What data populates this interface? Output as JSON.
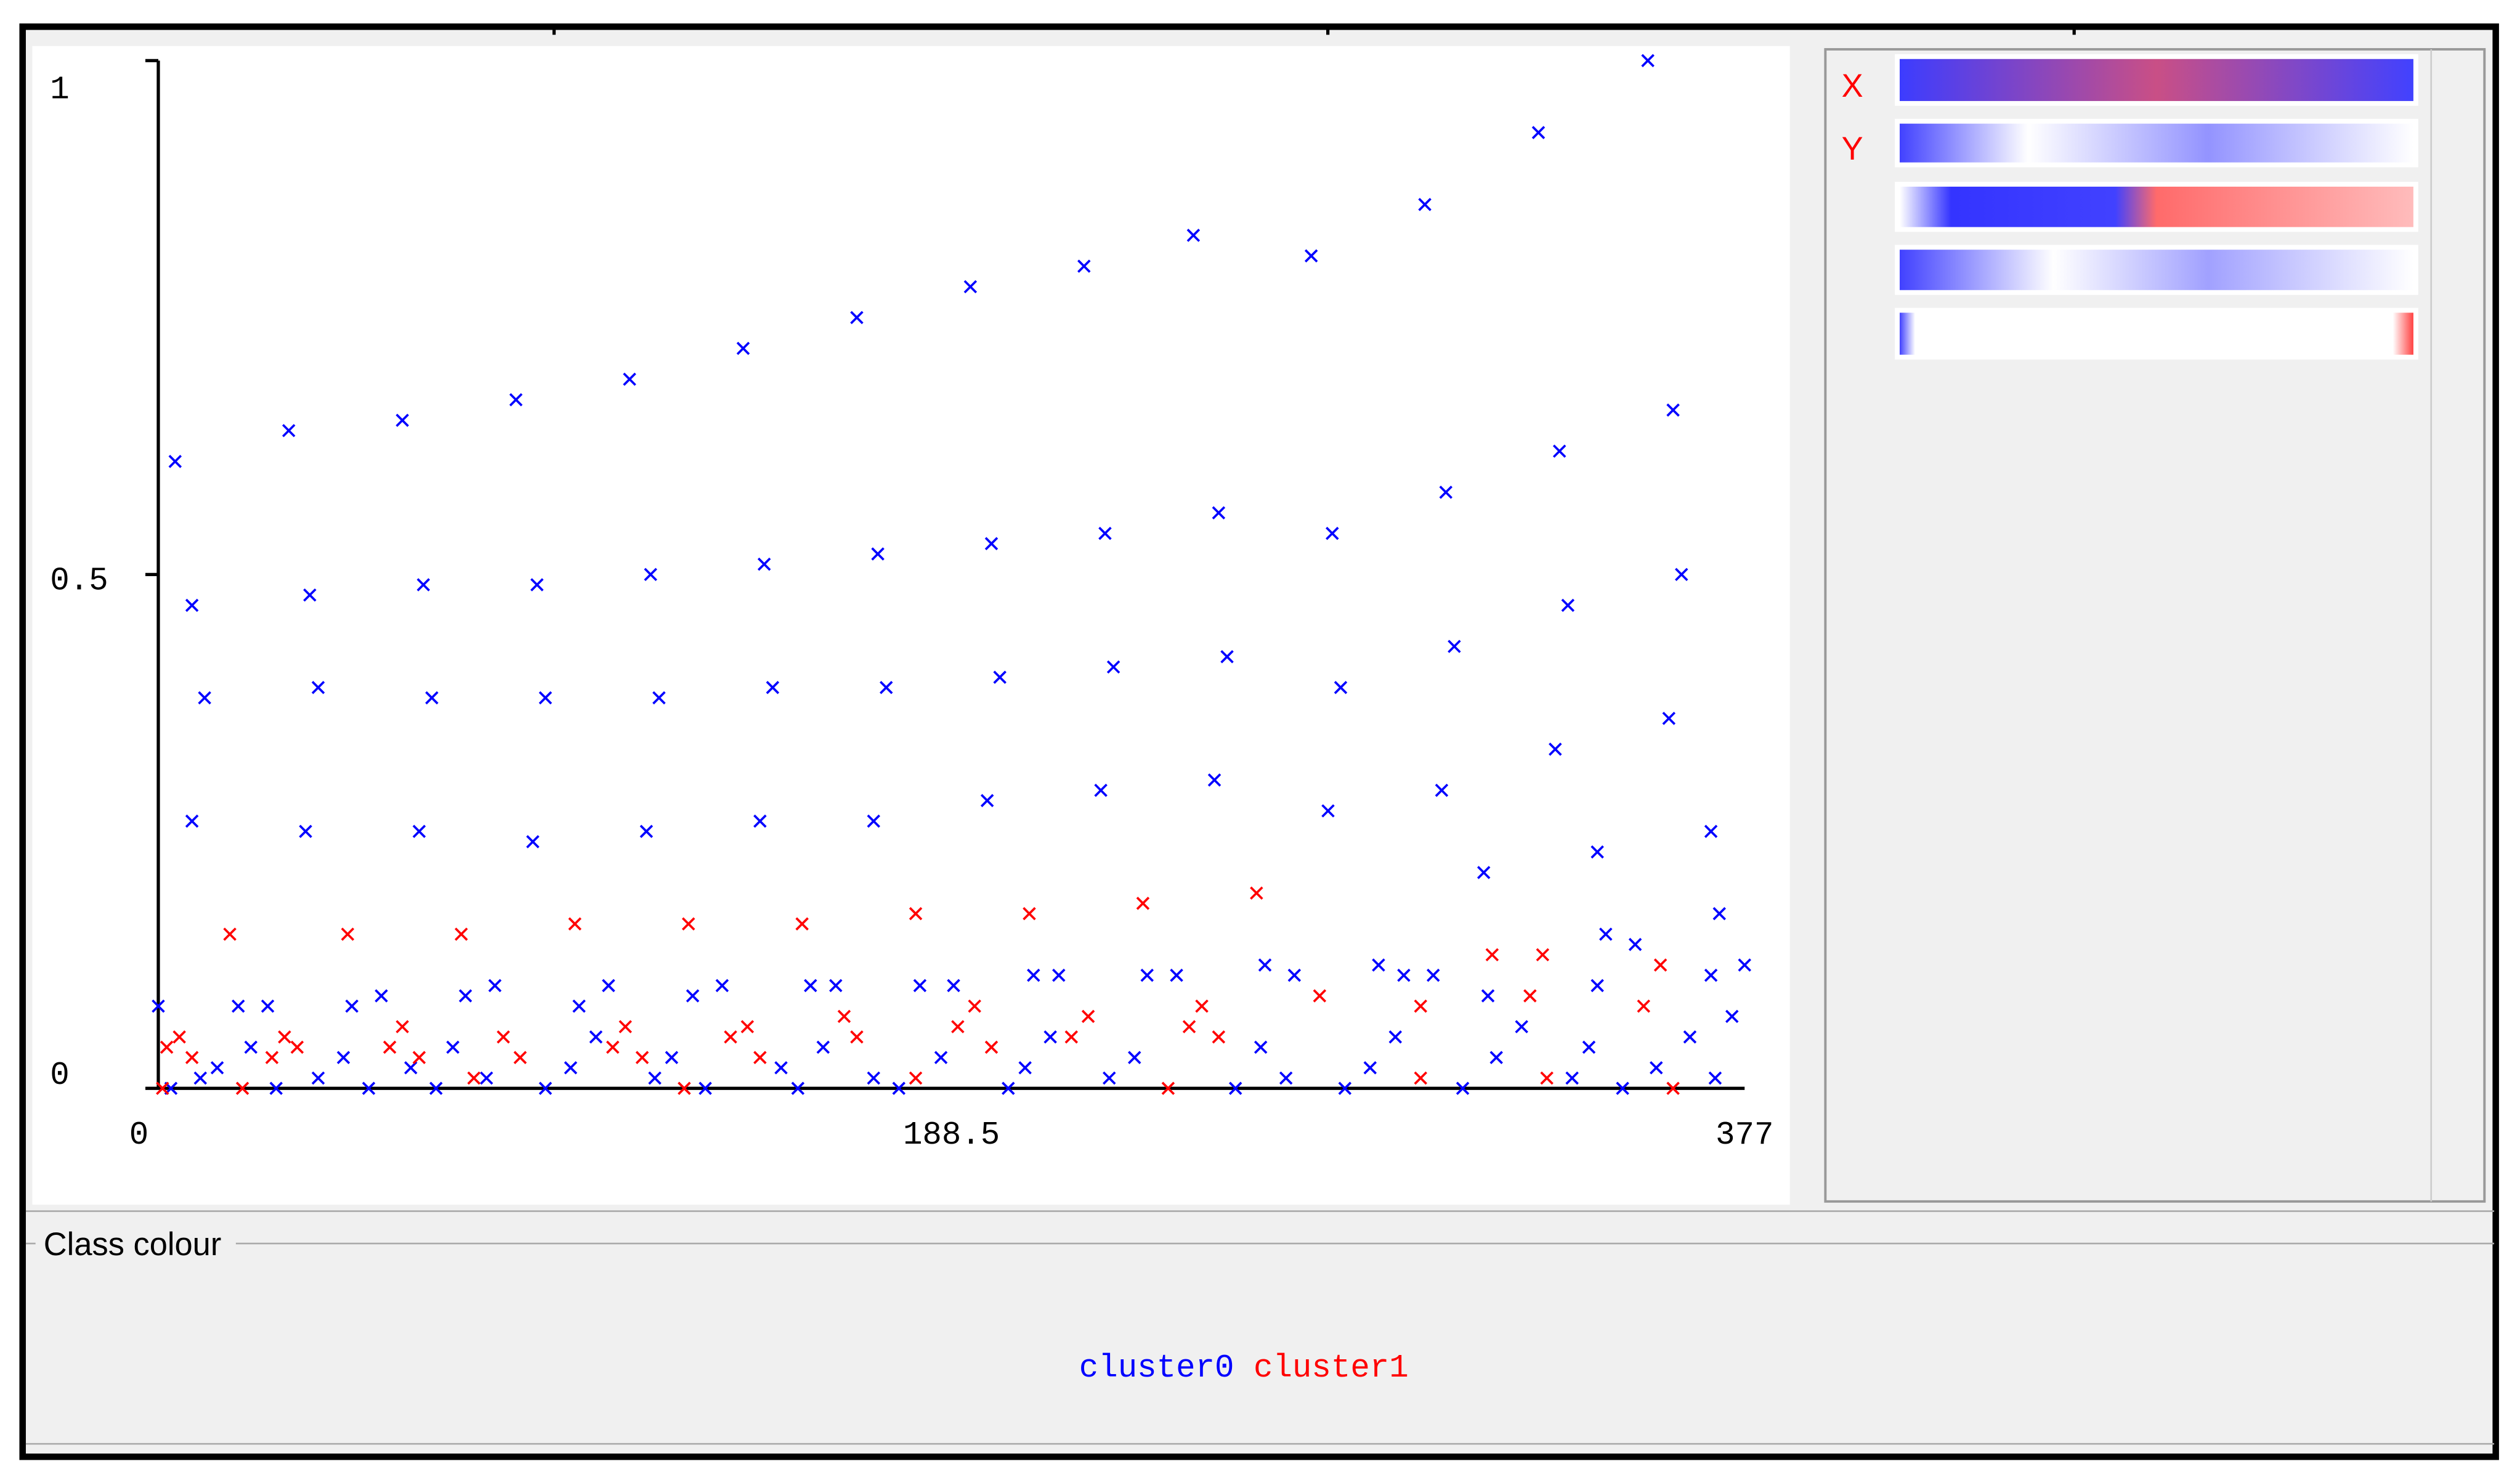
{
  "chart_data": {
    "type": "scatter",
    "xlim": [
      0,
      377
    ],
    "xticks": [
      0,
      188.5,
      377
    ],
    "ylim": [
      0,
      1
    ],
    "yticks": [
      0,
      0.5,
      1
    ],
    "legend_title": "Class colour",
    "series": [
      {
        "name": "cluster0",
        "color": "#0000ff",
        "x": [
          4,
          31,
          58,
          85,
          112,
          139,
          166,
          193,
          220,
          246,
          274,
          301,
          328,
          354,
          8,
          36,
          63,
          90,
          117,
          144,
          171,
          198,
          225,
          252,
          279,
          306,
          333,
          360,
          11,
          38,
          65,
          92,
          119,
          146,
          173,
          200,
          227,
          254,
          281,
          308,
          335,
          362,
          8,
          35,
          62,
          89,
          116,
          143,
          170,
          197,
          224,
          251,
          278,
          305,
          315,
          332,
          342,
          359,
          369,
          371,
          344,
          351,
          369,
          377,
          342,
          316,
          290,
          296,
          303,
          263,
          270,
          235,
          242,
          214,
          208,
          189,
          181,
          161,
          155,
          134,
          127,
          107,
          100,
          80,
          73,
          53,
          46,
          26,
          19,
          0,
          3,
          10,
          14,
          22,
          28,
          38,
          44,
          50,
          60,
          66,
          70,
          78,
          92,
          98,
          104,
          118,
          122,
          130,
          148,
          152,
          158,
          170,
          176,
          186,
          202,
          206,
          212,
          226,
          232,
          256,
          262,
          268,
          282,
          288,
          294,
          310,
          318,
          324,
          336,
          340,
          348,
          356,
          364,
          370,
          374
        ],
        "values": [
          0.61,
          0.64,
          0.65,
          0.67,
          0.69,
          0.72,
          0.75,
          0.78,
          0.8,
          0.83,
          0.81,
          0.86,
          0.93,
          1.0,
          0.47,
          0.48,
          0.49,
          0.49,
          0.5,
          0.51,
          0.52,
          0.53,
          0.54,
          0.56,
          0.54,
          0.58,
          0.62,
          0.66,
          0.38,
          0.39,
          0.38,
          0.38,
          0.38,
          0.39,
          0.39,
          0.4,
          0.41,
          0.42,
          0.39,
          0.43,
          0.47,
          0.5,
          0.26,
          0.25,
          0.25,
          0.24,
          0.25,
          0.26,
          0.26,
          0.28,
          0.29,
          0.3,
          0.27,
          0.29,
          0.21,
          0.33,
          0.23,
          0.36,
          0.25,
          0.17,
          0.15,
          0.14,
          0.11,
          0.12,
          0.1,
          0.09,
          0.12,
          0.11,
          0.11,
          0.12,
          0.11,
          0.11,
          0.11,
          0.11,
          0.11,
          0.1,
          0.1,
          0.1,
          0.1,
          0.1,
          0.09,
          0.1,
          0.08,
          0.1,
          0.09,
          0.09,
          0.08,
          0.08,
          0.08,
          0.08,
          0.0,
          0.01,
          0.02,
          0.04,
          0.0,
          0.01,
          0.03,
          0.0,
          0.02,
          0.0,
          0.04,
          0.01,
          0.0,
          0.02,
          0.05,
          0.01,
          0.03,
          0.0,
          0.02,
          0.0,
          0.04,
          0.01,
          0.0,
          0.03,
          0.0,
          0.02,
          0.05,
          0.01,
          0.03,
          0.0,
          0.04,
          0.01,
          0.0,
          0.02,
          0.05,
          0.0,
          0.03,
          0.06,
          0.01,
          0.04,
          0.0,
          0.02,
          0.05,
          0.01,
          0.07
        ]
      },
      {
        "name": "cluster1",
        "color": "#ff0000",
        "x": [
          17,
          45,
          72,
          99,
          126,
          153,
          180,
          207,
          234,
          261,
          317,
          329,
          357,
          326,
          353,
          276,
          300,
          2,
          5,
          8,
          27,
          30,
          33,
          55,
          58,
          62,
          82,
          86,
          108,
          111,
          115,
          136,
          140,
          143,
          163,
          166,
          190,
          194,
          198,
          217,
          221,
          245,
          248,
          252,
          330,
          1,
          20,
          75,
          125,
          180,
          240,
          300,
          360
        ],
        "values": [
          0.15,
          0.15,
          0.15,
          0.16,
          0.16,
          0.16,
          0.17,
          0.17,
          0.18,
          0.19,
          0.13,
          0.13,
          0.12,
          0.09,
          0.08,
          0.09,
          0.08,
          0.04,
          0.05,
          0.03,
          0.03,
          0.05,
          0.04,
          0.04,
          0.06,
          0.03,
          0.05,
          0.03,
          0.04,
          0.06,
          0.03,
          0.05,
          0.06,
          0.03,
          0.07,
          0.05,
          0.06,
          0.08,
          0.04,
          0.05,
          0.07,
          0.06,
          0.08,
          0.05,
          0.01,
          0.0,
          0.0,
          0.01,
          0.0,
          0.01,
          0.0,
          0.01,
          0.0
        ]
      }
    ]
  },
  "attribute_panel": {
    "labels": [
      "X",
      "Y"
    ]
  }
}
